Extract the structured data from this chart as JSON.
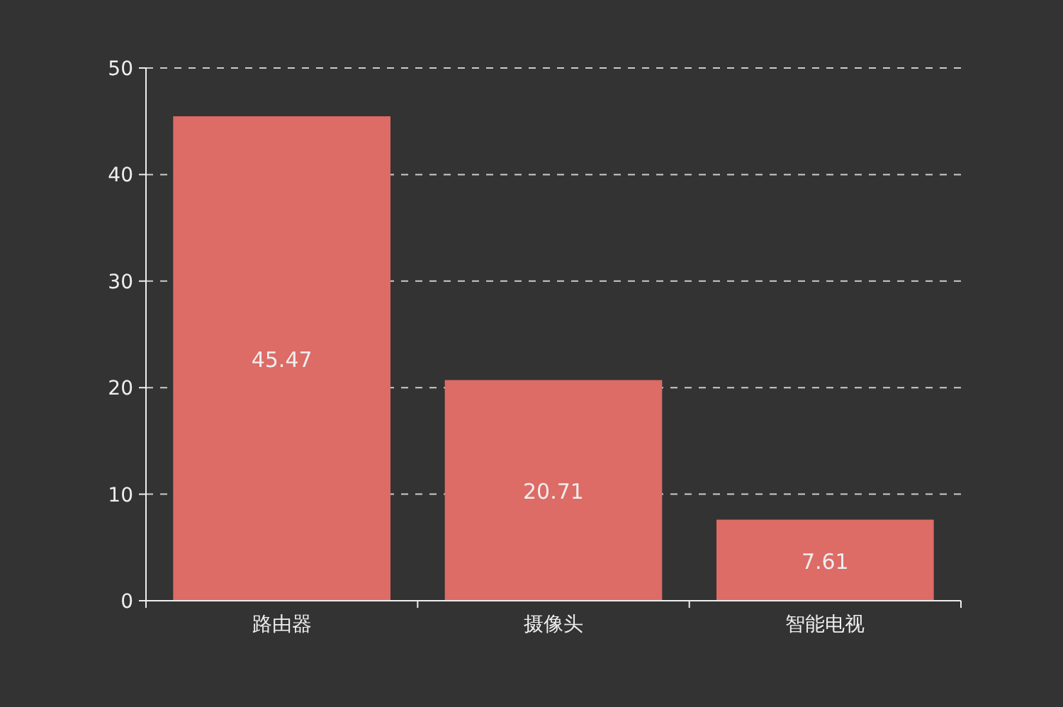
{
  "chart_data": {
    "type": "bar",
    "categories": [
      "路由器",
      "摄像头",
      "智能电视"
    ],
    "values": [
      45.47,
      20.71,
      7.61
    ],
    "color": "#dd6b66",
    "ylim": [
      0,
      50
    ],
    "yticks": [
      0,
      10,
      20,
      30,
      40,
      50
    ],
    "grid": "y",
    "data_labels": true
  }
}
